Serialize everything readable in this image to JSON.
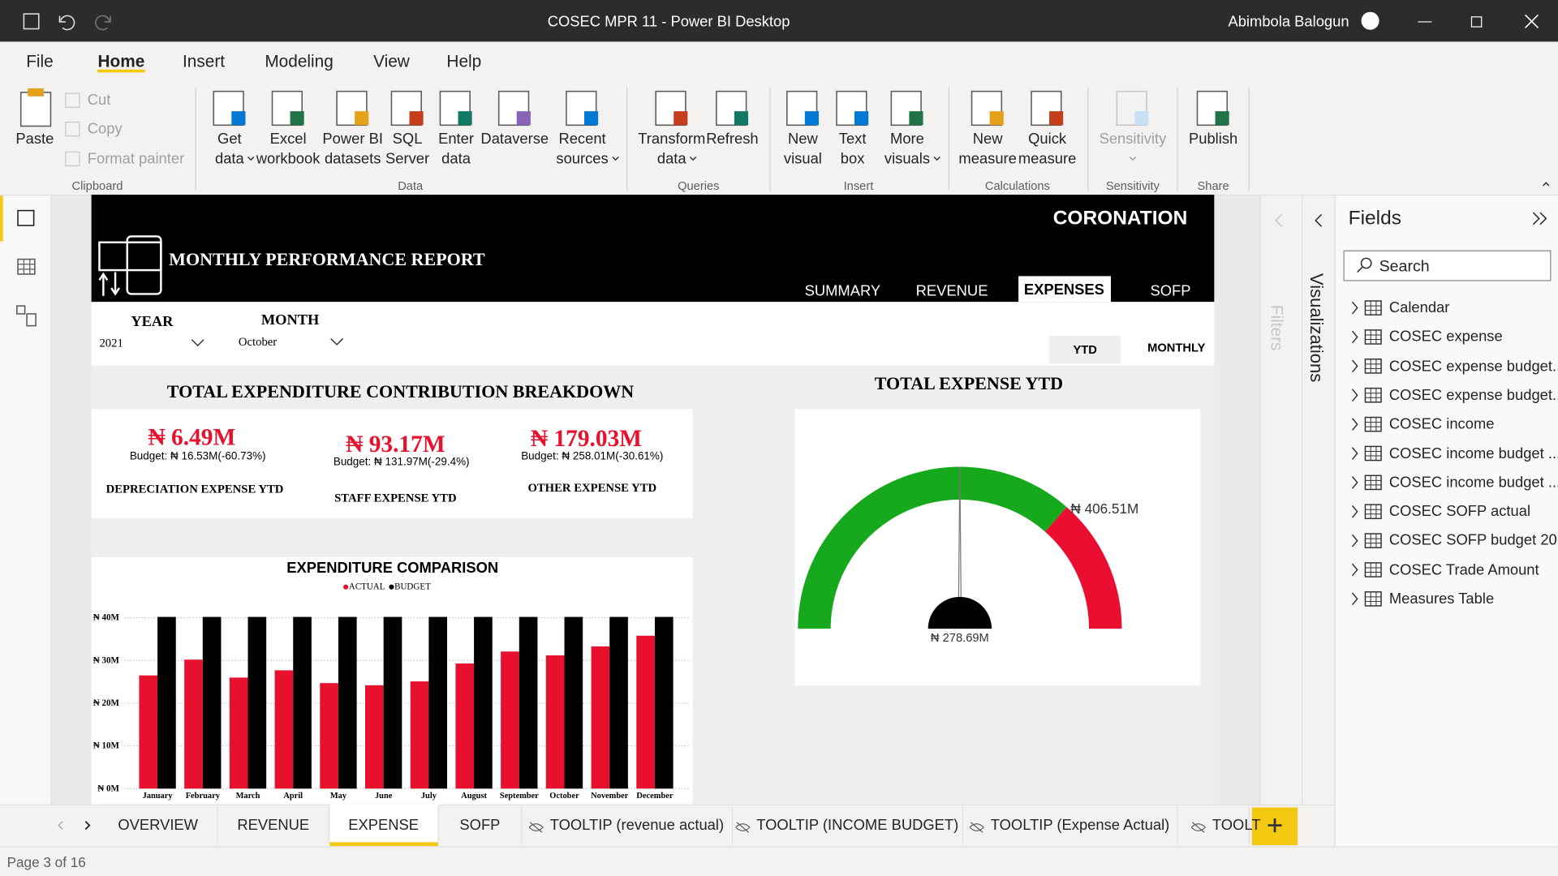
{
  "window": {
    "title": "COSEC MPR 11 - Power BI Desktop",
    "user": "Abimbola Balogun"
  },
  "ribbon": {
    "tabs": [
      "File",
      "Home",
      "Insert",
      "Modeling",
      "View",
      "Help"
    ],
    "active_tab": 1,
    "clipboard": {
      "paste": "Paste",
      "small": [
        "Cut",
        "Copy",
        "Format painter"
      ],
      "label": "Clipboard"
    },
    "groups": [
      {
        "label": "Data",
        "buttons": [
          [
            "Get",
            "data"
          ],
          [
            "Excel",
            "workbook"
          ],
          [
            "Power BI",
            "datasets"
          ],
          [
            "SQL",
            "Server"
          ],
          [
            "Enter",
            "data"
          ],
          [
            "Dataverse"
          ],
          [
            "Recent",
            "sources"
          ]
        ]
      },
      {
        "label": "Queries",
        "buttons": [
          [
            "Transform",
            "data"
          ],
          [
            "Refresh"
          ]
        ]
      },
      {
        "label": "Insert",
        "buttons": [
          [
            "New",
            "visual"
          ],
          [
            "Text",
            "box"
          ],
          [
            "More",
            "visuals"
          ]
        ]
      },
      {
        "label": "Calculations",
        "buttons": [
          [
            "New",
            "measure"
          ],
          [
            "Quick",
            "measure"
          ]
        ]
      },
      {
        "label": "Sensitivity",
        "buttons": [
          [
            "Sensitivity"
          ]
        ]
      },
      {
        "label": "Share",
        "buttons": [
          [
            "Publish"
          ]
        ]
      }
    ]
  },
  "report": {
    "brand": "CORONATION",
    "title": "MONTHLY PERFORMANCE REPORT",
    "nav": [
      "SUMMARY",
      "REVENUE",
      "EXPENSES",
      "SOFP"
    ],
    "active_nav": 2,
    "slicers": [
      {
        "label": "YEAR",
        "value": "2021"
      },
      {
        "label": "MONTH",
        "value": "October"
      }
    ],
    "toggle": [
      "YTD",
      "MONTHLY"
    ],
    "active_toggle": 0,
    "section_title": "TOTAL EXPENDITURE CONTRIBUTION BREAKDOWN",
    "cards": [
      {
        "value": "₦ 6.49M",
        "budget": "Budget: ₦ 16.53M(-60.73%)",
        "label": "DEPRECIATION EXPENSE YTD"
      },
      {
        "value": "₦ 93.17M",
        "budget": "Budget: ₦ 131.97M(-29.4%)",
        "label": "STAFF EXPENSE YTD"
      },
      {
        "value": "₦ 179.03M",
        "budget": "Budget: ₦ 258.01M(-30.61%)",
        "label": "OTHER EXPENSE YTD"
      }
    ]
  },
  "chart_data": [
    {
      "type": "bar",
      "title": "EXPENDITURE COMPARISON",
      "categories": [
        "January",
        "February",
        "March",
        "April",
        "May",
        "June",
        "July",
        "August",
        "September",
        "October",
        "November",
        "December"
      ],
      "series": [
        {
          "name": "ACTUAL",
          "color": "#e8112d",
          "values": [
            26.5,
            30.2,
            26.0,
            27.7,
            24.7,
            24.2,
            25.1,
            29.3,
            32.1,
            31.2,
            33.3,
            35.8
          ]
        },
        {
          "name": "BUDGET",
          "color": "#000000",
          "values": [
            40.2,
            40.2,
            40.2,
            40.2,
            40.2,
            40.2,
            40.2,
            40.2,
            40.2,
            40.2,
            40.2,
            40.2
          ]
        }
      ],
      "ylim": [
        0,
        41
      ],
      "yticks": [
        {
          "value": 0,
          "label": "₦ 0M"
        },
        {
          "value": 10,
          "label": "₦ 10M"
        },
        {
          "value": 20,
          "label": "₦ 20M"
        },
        {
          "value": 30,
          "label": "₦ 30M"
        },
        {
          "value": 40,
          "label": "₦ 40M"
        }
      ],
      "grid": true
    },
    {
      "type": "gauge",
      "title": "TOTAL EXPENSE YTD",
      "value": 278.69,
      "value_label": "₦ 278.69M",
      "target": 406.51,
      "target_label": "₦ 406.51M",
      "range": [
        0,
        557.38
      ],
      "colors": [
        "#16a91d",
        "#ea0f30"
      ]
    }
  ],
  "panes": {
    "filters": "Filters",
    "visualizations": "Visualizations"
  },
  "fields": {
    "title": "Fields",
    "search": "Search",
    "items": [
      "Calendar",
      "COSEC expense",
      "COSEC expense budget...",
      "COSEC expense budget...",
      "COSEC income",
      "COSEC income budget ...",
      "COSEC income budget ...",
      "COSEC SOFP actual",
      "COSEC SOFP budget 20...",
      "COSEC Trade Amount",
      "Measures Table"
    ]
  },
  "pages": {
    "tabs": [
      "OVERVIEW",
      "REVENUE",
      "EXPENSE",
      "SOFP",
      "TOOLTIP (revenue actual)",
      "TOOLTIP (INCOME BUDGET)",
      "TOOLTIP (Expense Actual)",
      "TOOLT"
    ],
    "active": 2
  },
  "status": "Page 3 of 16"
}
